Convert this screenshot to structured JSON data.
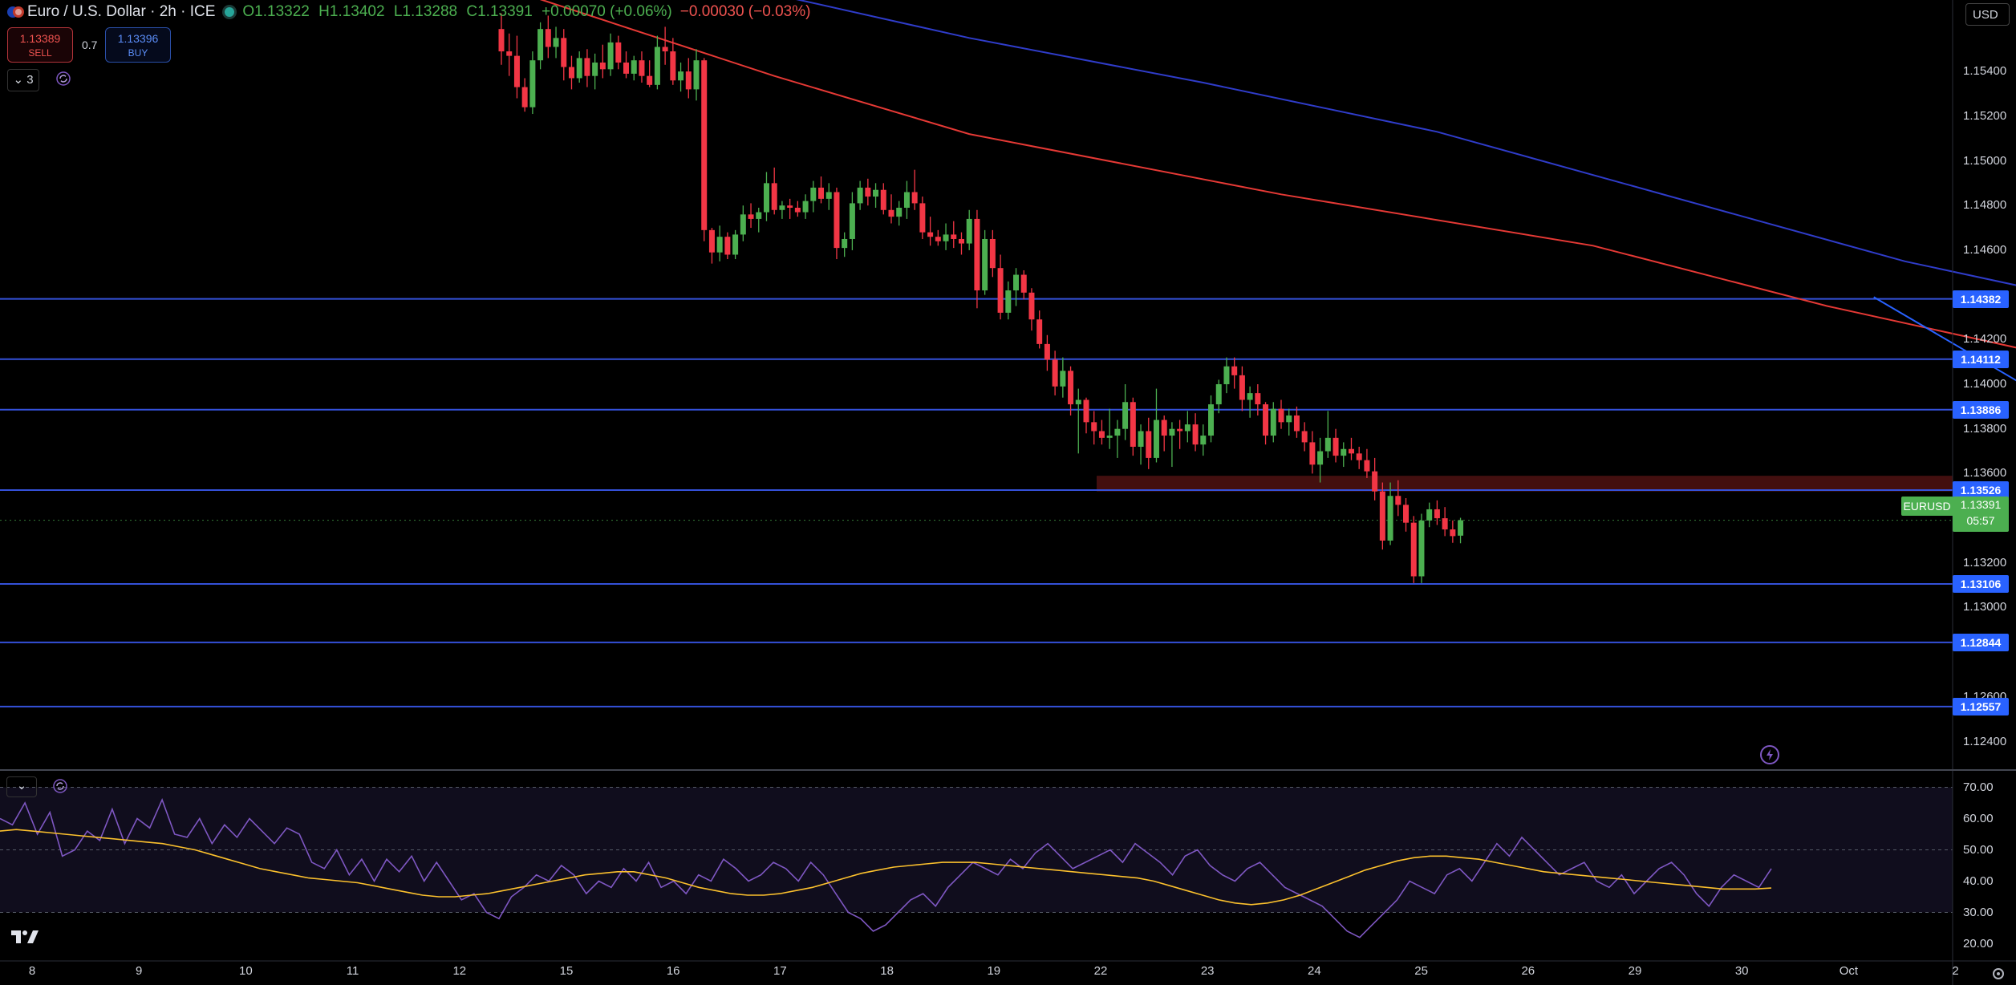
{
  "header": {
    "symbol": "Euro / U.S. Dollar · 2h · ICE",
    "open": "O1.13322",
    "high": "H1.13402",
    "low": "L1.13288",
    "close": "C1.13391",
    "change": "+0.00070 (+0.06%)",
    "change2": "−0.00030 (−0.03%)"
  },
  "trade": {
    "sell_price": "1.13389",
    "sell_label": "SELL",
    "spread": "0.7",
    "buy_price": "1.13396",
    "buy_label": "BUY"
  },
  "indicators_toggle": "3",
  "currency": "USD",
  "price_axis": [
    "1.15400",
    "1.15200",
    "1.15000",
    "1.14800",
    "1.14600",
    "1.14200",
    "1.14000",
    "1.13800",
    "1.13600",
    "1.13200",
    "1.13000",
    "1.12600",
    "1.12400"
  ],
  "levels": [
    "1.14382",
    "1.14112",
    "1.13886",
    "1.13526",
    "1.13106",
    "1.12844",
    "1.12557"
  ],
  "current": {
    "symbol": "EURUSD",
    "price": "1.13391",
    "countdown": "05:57"
  },
  "time_axis": [
    "8",
    "9",
    "10",
    "11",
    "12",
    "15",
    "16",
    "17",
    "18",
    "19",
    "22",
    "23",
    "24",
    "25",
    "26",
    "29",
    "30",
    "Oct",
    "2"
  ],
  "rsi_axis": [
    "70.00",
    "60.00",
    "50.00",
    "40.00",
    "30.00",
    "20.00"
  ],
  "colors": {
    "up": "#4caf50",
    "down": "#f23645",
    "ma_fast": "#e53935",
    "ma_slow": "#2f3cc9",
    "levels": "#3451d9",
    "rsi": "#7e57c2",
    "rsi_ma": "#fbc02d",
    "zone": "#5a1414"
  },
  "chart_data": {
    "type": "candlestick",
    "title": "Euro / U.S. Dollar · 2h · ICE",
    "ylim": [
      1.1228,
      1.1572
    ],
    "horizontal_levels": [
      1.14382,
      1.14112,
      1.13886,
      1.13526,
      1.13106,
      1.12844,
      1.12557
    ],
    "resistance_zone": [
      1.1352,
      1.1359
    ],
    "candles": [
      [
        1.1559,
        1.1566,
        1.1543,
        1.1549
      ],
      [
        1.1549,
        1.1557,
        1.1538,
        1.1547
      ],
      [
        1.1547,
        1.1556,
        1.1528,
        1.1533
      ],
      [
        1.1533,
        1.1537,
        1.1522,
        1.1524
      ],
      [
        1.1524,
        1.1549,
        1.1521,
        1.1545
      ],
      [
        1.1545,
        1.1562,
        1.1541,
        1.1559
      ],
      [
        1.1559,
        1.1565,
        1.1546,
        1.1551
      ],
      [
        1.1551,
        1.156,
        1.1546,
        1.1555
      ],
      [
        1.1555,
        1.1559,
        1.1536,
        1.1542
      ],
      [
        1.1542,
        1.1547,
        1.1532,
        1.1537
      ],
      [
        1.1537,
        1.1549,
        1.1535,
        1.1546
      ],
      [
        1.1546,
        1.155,
        1.1533,
        1.1538
      ],
      [
        1.1538,
        1.1548,
        1.1532,
        1.1544
      ],
      [
        1.1544,
        1.1552,
        1.1537,
        1.1541
      ],
      [
        1.1541,
        1.1557,
        1.1538,
        1.1553
      ],
      [
        1.1553,
        1.1556,
        1.1541,
        1.1544
      ],
      [
        1.1544,
        1.1549,
        1.1537,
        1.1539
      ],
      [
        1.1539,
        1.1547,
        1.1536,
        1.1545
      ],
      [
        1.1545,
        1.1549,
        1.1535,
        1.1538
      ],
      [
        1.1538,
        1.1545,
        1.1533,
        1.1534
      ],
      [
        1.1534,
        1.1556,
        1.1532,
        1.1551
      ],
      [
        1.1551,
        1.156,
        1.1543,
        1.1549
      ],
      [
        1.1549,
        1.1555,
        1.1534,
        1.1536
      ],
      [
        1.1536,
        1.1544,
        1.1531,
        1.154
      ],
      [
        1.154,
        1.1546,
        1.1528,
        1.1532
      ],
      [
        1.1532,
        1.155,
        1.1527,
        1.1545
      ],
      [
        1.1545,
        1.1546,
        1.1464,
        1.1469
      ],
      [
        1.1469,
        1.147,
        1.1454,
        1.1459
      ],
      [
        1.1459,
        1.1471,
        1.1455,
        1.1466
      ],
      [
        1.1466,
        1.1468,
        1.1456,
        1.1458
      ],
      [
        1.1458,
        1.1469,
        1.1456,
        1.1467
      ],
      [
        1.1467,
        1.148,
        1.1464,
        1.1476
      ],
      [
        1.1476,
        1.1481,
        1.147,
        1.1474
      ],
      [
        1.1474,
        1.1479,
        1.1468,
        1.1477
      ],
      [
        1.1477,
        1.1495,
        1.1473,
        1.149
      ],
      [
        1.149,
        1.1497,
        1.1476,
        1.1478
      ],
      [
        1.1478,
        1.1482,
        1.1474,
        1.148
      ],
      [
        1.148,
        1.1483,
        1.1474,
        1.1479
      ],
      [
        1.1479,
        1.1482,
        1.1475,
        1.1477
      ],
      [
        1.1477,
        1.1485,
        1.1474,
        1.1482
      ],
      [
        1.1482,
        1.1491,
        1.1477,
        1.1488
      ],
      [
        1.1488,
        1.1493,
        1.1481,
        1.1483
      ],
      [
        1.1483,
        1.149,
        1.1478,
        1.1486
      ],
      [
        1.1486,
        1.1488,
        1.1456,
        1.1461
      ],
      [
        1.1461,
        1.1468,
        1.1457,
        1.1465
      ],
      [
        1.1465,
        1.1486,
        1.146,
        1.1481
      ],
      [
        1.1481,
        1.1491,
        1.1478,
        1.1488
      ],
      [
        1.1488,
        1.1492,
        1.148,
        1.1484
      ],
      [
        1.1484,
        1.149,
        1.1479,
        1.1487
      ],
      [
        1.1487,
        1.149,
        1.1476,
        1.1478
      ],
      [
        1.1478,
        1.1485,
        1.1472,
        1.1475
      ],
      [
        1.1475,
        1.1482,
        1.1471,
        1.1479
      ],
      [
        1.1479,
        1.1491,
        1.1474,
        1.1486
      ],
      [
        1.1486,
        1.1496,
        1.1478,
        1.1481
      ],
      [
        1.1481,
        1.1484,
        1.1465,
        1.1468
      ],
      [
        1.1468,
        1.1475,
        1.1462,
        1.1466
      ],
      [
        1.1466,
        1.1469,
        1.1462,
        1.1464
      ],
      [
        1.1464,
        1.1472,
        1.146,
        1.1467
      ],
      [
        1.1467,
        1.1473,
        1.1461,
        1.1465
      ],
      [
        1.1465,
        1.1468,
        1.1458,
        1.1463
      ],
      [
        1.1463,
        1.1478,
        1.146,
        1.1474
      ],
      [
        1.1474,
        1.1478,
        1.1434,
        1.1442
      ],
      [
        1.1442,
        1.1469,
        1.144,
        1.1465
      ],
      [
        1.1465,
        1.1469,
        1.1448,
        1.1452
      ],
      [
        1.1452,
        1.1458,
        1.1429,
        1.1432
      ],
      [
        1.1432,
        1.1446,
        1.1429,
        1.1442
      ],
      [
        1.1442,
        1.1452,
        1.1435,
        1.1449
      ],
      [
        1.1449,
        1.1451,
        1.1438,
        1.1441
      ],
      [
        1.1441,
        1.1443,
        1.1424,
        1.1429
      ],
      [
        1.1429,
        1.1433,
        1.1416,
        1.1418
      ],
      [
        1.1418,
        1.1422,
        1.1406,
        1.1411
      ],
      [
        1.1411,
        1.1415,
        1.1395,
        1.1399
      ],
      [
        1.1399,
        1.1412,
        1.1394,
        1.1406
      ],
      [
        1.1406,
        1.1408,
        1.1386,
        1.1391
      ],
      [
        1.1391,
        1.1398,
        1.1369,
        1.1393
      ],
      [
        1.1393,
        1.1394,
        1.1378,
        1.1383
      ],
      [
        1.1383,
        1.1388,
        1.1373,
        1.1379
      ],
      [
        1.1379,
        1.1384,
        1.1373,
        1.1376
      ],
      [
        1.1376,
        1.1389,
        1.1371,
        1.1377
      ],
      [
        1.1377,
        1.1384,
        1.1367,
        1.138
      ],
      [
        1.138,
        1.14,
        1.1375,
        1.1392
      ],
      [
        1.1392,
        1.1394,
        1.1368,
        1.1372
      ],
      [
        1.1372,
        1.1382,
        1.1364,
        1.1379
      ],
      [
        1.1379,
        1.1385,
        1.1362,
        1.1367
      ],
      [
        1.1367,
        1.1398,
        1.1365,
        1.1384
      ],
      [
        1.1384,
        1.1386,
        1.137,
        1.1377
      ],
      [
        1.1377,
        1.1383,
        1.1363,
        1.138
      ],
      [
        1.138,
        1.1384,
        1.1371,
        1.1379
      ],
      [
        1.1379,
        1.1388,
        1.1374,
        1.1382
      ],
      [
        1.1382,
        1.1387,
        1.137,
        1.1373
      ],
      [
        1.1373,
        1.1382,
        1.1368,
        1.1377
      ],
      [
        1.1377,
        1.1395,
        1.1374,
        1.1391
      ],
      [
        1.1391,
        1.1402,
        1.1387,
        1.14
      ],
      [
        1.14,
        1.1412,
        1.1396,
        1.1408
      ],
      [
        1.1408,
        1.1412,
        1.1398,
        1.1404
      ],
      [
        1.1404,
        1.1408,
        1.1388,
        1.1393
      ],
      [
        1.1393,
        1.1399,
        1.1385,
        1.1396
      ],
      [
        1.1396,
        1.14,
        1.1386,
        1.1391
      ],
      [
        1.1391,
        1.1392,
        1.1373,
        1.1377
      ],
      [
        1.1377,
        1.1392,
        1.1374,
        1.1389
      ],
      [
        1.1389,
        1.1393,
        1.138,
        1.1383
      ],
      [
        1.1383,
        1.1389,
        1.1377,
        1.1386
      ],
      [
        1.1386,
        1.139,
        1.1376,
        1.1379
      ],
      [
        1.1379,
        1.1383,
        1.137,
        1.1374
      ],
      [
        1.1374,
        1.1379,
        1.136,
        1.1364
      ],
      [
        1.1364,
        1.1376,
        1.1356,
        1.137
      ],
      [
        1.137,
        1.1388,
        1.1367,
        1.1376
      ],
      [
        1.1376,
        1.138,
        1.1365,
        1.1368
      ],
      [
        1.1368,
        1.1374,
        1.1363,
        1.1371
      ],
      [
        1.1371,
        1.1376,
        1.1366,
        1.1369
      ],
      [
        1.1369,
        1.1372,
        1.1362,
        1.1366
      ],
      [
        1.1366,
        1.1371,
        1.1358,
        1.1361
      ],
      [
        1.1361,
        1.1367,
        1.1348,
        1.1352
      ],
      [
        1.1352,
        1.1356,
        1.1326,
        1.133
      ],
      [
        1.133,
        1.1356,
        1.1328,
        1.135
      ],
      [
        1.135,
        1.1357,
        1.1341,
        1.1346
      ],
      [
        1.1346,
        1.1349,
        1.1334,
        1.1338
      ],
      [
        1.1338,
        1.1341,
        1.1311,
        1.1314
      ],
      [
        1.1314,
        1.1342,
        1.1311,
        1.1339
      ],
      [
        1.1339,
        1.1347,
        1.1336,
        1.1344
      ],
      [
        1.1344,
        1.1348,
        1.1337,
        1.134
      ],
      [
        1.134,
        1.1345,
        1.1332,
        1.1335
      ],
      [
        1.1335,
        1.1339,
        1.1329,
        1.1332
      ],
      [
        1.13322,
        1.13402,
        1.13288,
        1.13391
      ]
    ],
    "ma_fast": [
      [
        0,
        1.1578
      ],
      [
        35,
        1.1538
      ],
      [
        60,
        1.1512
      ],
      [
        100,
        1.1485
      ],
      [
        140,
        1.1462
      ],
      [
        170,
        1.1435
      ],
      [
        200,
        1.1412
      ],
      [
        222,
        1.1394
      ]
    ],
    "ma_slow": [
      [
        28,
        1.158
      ],
      [
        60,
        1.1555
      ],
      [
        90,
        1.1535
      ],
      [
        120,
        1.1513
      ],
      [
        150,
        1.1484
      ],
      [
        180,
        1.1455
      ],
      [
        200,
        1.144
      ],
      [
        222,
        1.1409
      ]
    ],
    "trendline": [
      [
        176,
        1.1439
      ],
      [
        246,
        1.1296
      ]
    ],
    "rsi_ylim": [
      15,
      75
    ],
    "rsi": [
      60,
      58,
      65,
      55,
      62,
      48,
      50,
      56,
      53,
      63,
      52,
      60,
      57,
      66,
      55,
      54,
      60,
      52,
      58,
      54,
      60,
      56,
      52,
      57,
      55,
      46,
      44,
      50,
      42,
      47,
      40,
      47,
      43,
      48,
      40,
      46,
      40,
      34,
      36,
      30,
      28,
      35,
      38,
      42,
      40,
      45,
      42,
      36,
      40,
      38,
      44,
      40,
      46,
      38,
      40,
      36,
      42,
      40,
      47,
      44,
      40,
      42,
      46,
      44,
      40,
      46,
      42,
      36,
      30,
      28,
      24,
      26,
      30,
      34,
      36,
      32,
      38,
      42,
      46,
      44,
      42,
      47,
      44,
      49,
      52,
      48,
      44,
      46,
      48,
      50,
      46,
      52,
      49,
      46,
      42,
      48,
      50,
      45,
      42,
      40,
      44,
      46,
      42,
      38,
      36,
      34,
      32,
      28,
      24,
      22,
      26,
      30,
      34,
      40,
      38,
      36,
      42,
      44,
      40,
      46,
      52,
      48,
      54,
      50,
      46,
      42,
      44,
      46,
      40,
      38,
      42,
      36,
      40,
      44,
      46,
      42,
      36,
      32,
      38,
      42,
      40,
      38,
      44
    ],
    "rsi_ma": [
      56,
      56.5,
      56,
      55.5,
      55,
      54.5,
      54,
      53.5,
      53,
      52.5,
      52,
      51,
      50,
      48.5,
      47,
      45.5,
      44,
      43,
      42,
      41,
      40.5,
      40,
      39.5,
      38.5,
      37.5,
      36.5,
      35.5,
      35,
      35,
      35.5,
      36,
      37,
      38,
      39,
      40,
      41,
      42,
      42.5,
      43,
      43,
      42,
      41,
      39.5,
      38,
      37,
      36,
      35.5,
      35.5,
      36,
      37,
      38,
      39.5,
      41,
      42.5,
      43.5,
      44.5,
      45,
      45.5,
      46,
      46,
      46,
      45.5,
      45,
      44.5,
      44,
      43.5,
      43,
      42.5,
      42,
      41.5,
      41,
      40,
      38.5,
      37,
      35.5,
      34,
      33,
      32.5,
      33,
      34,
      35.5,
      37.5,
      39.5,
      41.5,
      43.5,
      45,
      46.5,
      47.5,
      48,
      48,
      47.5,
      47,
      46,
      45,
      44,
      43,
      42.5,
      42,
      41.5,
      41,
      40.5,
      40,
      39.5,
      39,
      38.5,
      38,
      37.5,
      37.5,
      37.5,
      37.8
    ]
  }
}
